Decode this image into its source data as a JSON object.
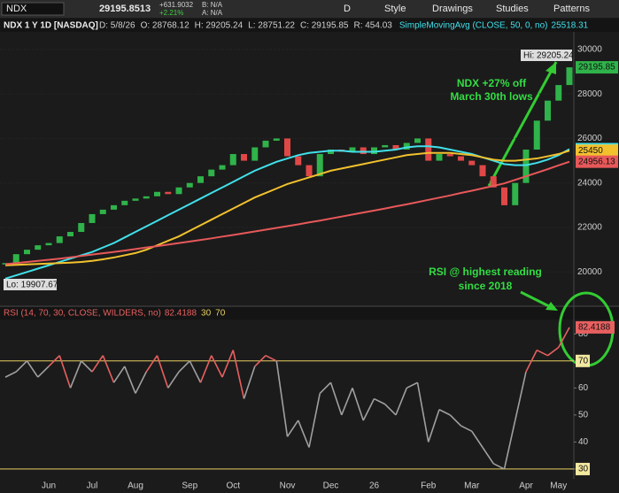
{
  "toolbar": {
    "symbol": "NDX",
    "last": "29195.8513",
    "change": "+631.9032",
    "change_pct": "+2.21%",
    "bid": "B: N/A",
    "ask": "A: N/A",
    "period": "D",
    "buttons": [
      "Style",
      "Drawings",
      "Studies",
      "Patterns"
    ]
  },
  "chart_data": [
    {
      "type": "candlestick",
      "title": "NDX 1 Y 1D [NASDAQ]",
      "info": [
        "D: 5/8/26",
        "O: 28768.12",
        "H: 29205.24",
        "L: 28751.22",
        "C: 29195.85",
        "R: 454.03"
      ],
      "close": [
        20400,
        20800,
        21000,
        21200,
        21300,
        21600,
        21800,
        22200,
        22600,
        22800,
        23000,
        23200,
        23300,
        23400,
        23600,
        23500,
        23800,
        24000,
        24300,
        24600,
        24800,
        25300,
        25000,
        25600,
        25900,
        26000,
        25200,
        24800,
        24300,
        25300,
        25500,
        25400,
        25600,
        25300,
        25600,
        25700,
        25500,
        25800,
        26000,
        25000,
        25300,
        25200,
        25000,
        24800,
        24300,
        23800,
        23000,
        24000,
        25500,
        26800,
        27700,
        28400,
        29195.85
      ],
      "up_color": "#2fb34a",
      "down_color": "#e04848",
      "series": [
        {
          "name": "SimpleMovingAvg (CLOSE, 50, 0, no)",
          "color": "#41e0ea",
          "values": [
            19700,
            19850,
            20000,
            20150,
            20300,
            20450,
            20600,
            20750,
            20900,
            21100,
            21300,
            21550,
            21800,
            22050,
            22300,
            22550,
            22800,
            23050,
            23300,
            23550,
            23800,
            24050,
            24300,
            24550,
            24750,
            24950,
            25100,
            25250,
            25350,
            25400,
            25450,
            25450,
            25400,
            25400,
            25400,
            25450,
            25500,
            25600,
            25650,
            25650,
            25600,
            25500,
            25400,
            25300,
            25150,
            25000,
            24850,
            24800,
            24800,
            24900,
            25050,
            25250,
            25518.31
          ]
        },
        {
          "color": "#f2c12e",
          "values": [
            20300,
            20320,
            20340,
            20360,
            20380,
            20400,
            20420,
            20450,
            20500,
            20570,
            20650,
            20750,
            20850,
            21000,
            21200,
            21400,
            21600,
            21850,
            22100,
            22350,
            22600,
            22850,
            23100,
            23350,
            23550,
            23750,
            23950,
            24100,
            24250,
            24400,
            24550,
            24650,
            24750,
            24850,
            24950,
            25050,
            25150,
            25250,
            25300,
            25350,
            25350,
            25350,
            25300,
            25250,
            25150,
            25050,
            25000,
            25000,
            25050,
            25100,
            25200,
            25300,
            25450
          ]
        },
        {
          "color": "#e8585a",
          "values": [
            20350,
            20400,
            20450,
            20500,
            20550,
            20600,
            20660,
            20720,
            20780,
            20840,
            20900,
            20960,
            21030,
            21100,
            21160,
            21230,
            21300,
            21370,
            21440,
            21510,
            21590,
            21660,
            21740,
            21820,
            21900,
            21980,
            22060,
            22140,
            22230,
            22310,
            22400,
            22490,
            22580,
            22670,
            22760,
            22850,
            22950,
            23040,
            23140,
            23240,
            23340,
            23440,
            23550,
            23650,
            23760,
            23870,
            23980,
            24140,
            24300,
            24460,
            24620,
            24790,
            24956.13
          ]
        }
      ],
      "ylim": [
        18500,
        30750
      ],
      "yticks": [
        20000,
        22000,
        24000,
        26000,
        28000,
        30000
      ],
      "hi_label": "Hi: 29205.24",
      "lo_label": "Lo: 19907.67",
      "annotation": [
        "NDX +27% off",
        "March 30th lows"
      ],
      "annotation_color": "#33dd44"
    },
    {
      "type": "line",
      "title": "RSI (14, 70, 30, CLOSE, WILDERS, no)",
      "categories": [
        null,
        null,
        null,
        null,
        "Jun",
        null,
        null,
        null,
        "Jul",
        null,
        null,
        null,
        "Aug",
        null,
        null,
        null,
        null,
        "Sep",
        null,
        null,
        null,
        "Oct",
        null,
        null,
        null,
        null,
        "Nov",
        null,
        null,
        null,
        "Dec",
        null,
        null,
        null,
        "26",
        null,
        null,
        null,
        null,
        "Feb",
        null,
        null,
        null,
        "Mar",
        null,
        null,
        null,
        null,
        "Apr",
        null,
        null,
        "May",
        null
      ],
      "values": [
        64,
        66,
        70,
        64,
        68,
        72,
        60,
        70,
        66,
        72,
        62,
        68,
        58,
        66,
        72,
        60,
        66,
        70,
        62,
        72,
        64,
        74,
        56,
        68,
        72,
        70,
        42,
        48,
        38,
        58,
        62,
        50,
        60,
        48,
        56,
        54,
        50,
        60,
        62,
        40,
        52,
        50,
        46,
        44,
        38,
        32,
        30,
        48,
        66,
        74,
        72,
        75,
        82.4188
      ],
      "color": "#a0a0a0",
      "over_color": "#e86060",
      "overbought": 70,
      "oversold": 30,
      "level_color": "#e8d060",
      "ylim": [
        26.7,
        85
      ],
      "yticks": [
        30,
        40,
        50,
        60,
        70,
        80
      ],
      "annotation": [
        "RSI @ highest reading",
        "since 2018"
      ],
      "annotation_color": "#33dd44"
    }
  ]
}
